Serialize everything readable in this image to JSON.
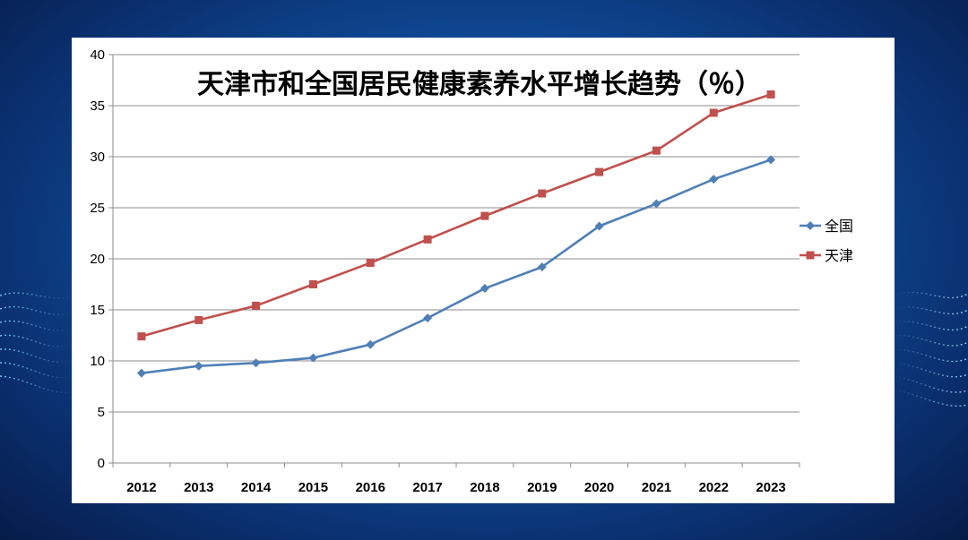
{
  "chart_data": {
    "type": "line",
    "title": "天津市和全国居民健康素养水平增长趋势（％）",
    "x": [
      "2012",
      "2013",
      "2014",
      "2015",
      "2016",
      "2017",
      "2018",
      "2019",
      "2020",
      "2021",
      "2022",
      "2023"
    ],
    "ylim": [
      0,
      40
    ],
    "yticks": [
      "0",
      "5",
      "10",
      "15",
      "20",
      "25",
      "30",
      "35",
      "40"
    ],
    "grid": true,
    "legend_position": "right",
    "series": [
      {
        "name": "全国",
        "color": "#4f7fb6",
        "marker": "diamond",
        "values": [
          8.8,
          9.5,
          9.8,
          10.3,
          11.6,
          14.2,
          17.1,
          19.2,
          23.2,
          25.4,
          27.8,
          29.7
        ]
      },
      {
        "name": "天津",
        "color": "#c0504d",
        "marker": "square",
        "values": [
          12.4,
          14.0,
          15.4,
          17.5,
          19.6,
          21.9,
          24.2,
          26.4,
          28.5,
          30.6,
          34.3,
          36.1
        ]
      }
    ]
  }
}
